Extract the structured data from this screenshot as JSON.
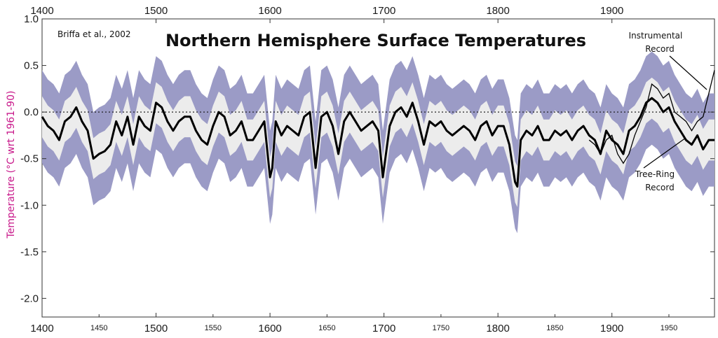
{
  "chart_data": {
    "type": "line",
    "title": "Northern Hemisphere Surface Temperatures",
    "source": "Briffa et al., 2002",
    "ylabel": "Temperature (°C wrt 1961-90)",
    "xlim": [
      1400,
      1990
    ],
    "ylim": [
      -2.2,
      1.0
    ],
    "x_major_ticks": [
      "1400",
      "1500",
      "1600",
      "1700",
      "1800",
      "1900"
    ],
    "x_minor_ticks": [
      "1450",
      "1550",
      "1650",
      "1750",
      "1850",
      "1950"
    ],
    "x_major_values": [
      1400,
      1500,
      1600,
      1700,
      1800,
      1900
    ],
    "x_minor_values": [
      1450,
      1550,
      1650,
      1750,
      1850,
      1950
    ],
    "y_ticks": [
      "1.0",
      "0.5",
      "0.0",
      "-0.5",
      "-1.0",
      "-1.5",
      "-2.0"
    ],
    "y_values": [
      1.0,
      0.5,
      0.0,
      -0.5,
      -1.0,
      -1.5,
      -2.0
    ],
    "zero_line": "dotted",
    "annotations": {
      "instrumental_line1": "Instrumental",
      "instrumental_line2": "Record",
      "treering_line1": "Tree-Ring",
      "treering_line2": "Record"
    },
    "colors": {
      "outer_band": "#9b9bc6",
      "inner_band": "#ececec",
      "tree_ring": "#000000",
      "instrumental": "#000000",
      "ylabel": "#c8188a"
    },
    "series": [
      {
        "name": "Tree-Ring Record",
        "x": [
          1400,
          1405,
          1410,
          1415,
          1420,
          1425,
          1430,
          1435,
          1440,
          1445,
          1450,
          1455,
          1460,
          1465,
          1470,
          1475,
          1480,
          1485,
          1490,
          1495,
          1500,
          1505,
          1510,
          1515,
          1520,
          1525,
          1530,
          1535,
          1540,
          1545,
          1550,
          1555,
          1560,
          1565,
          1570,
          1575,
          1580,
          1585,
          1590,
          1595,
          1600,
          1602,
          1605,
          1610,
          1615,
          1620,
          1625,
          1630,
          1635,
          1640,
          1645,
          1650,
          1655,
          1660,
          1665,
          1670,
          1675,
          1680,
          1685,
          1690,
          1695,
          1699,
          1705,
          1710,
          1715,
          1720,
          1725,
          1730,
          1735,
          1740,
          1745,
          1750,
          1755,
          1760,
          1765,
          1770,
          1775,
          1780,
          1785,
          1790,
          1795,
          1800,
          1805,
          1810,
          1815,
          1817,
          1820,
          1825,
          1830,
          1835,
          1840,
          1845,
          1850,
          1855,
          1860,
          1865,
          1870,
          1875,
          1880,
          1885,
          1890,
          1895,
          1900,
          1905,
          1910,
          1915,
          1920,
          1925,
          1930,
          1935,
          1940,
          1945,
          1950,
          1955,
          1960,
          1965,
          1970,
          1975,
          1980,
          1985,
          1990
        ],
        "values": [
          -0.05,
          -0.15,
          -0.2,
          -0.3,
          -0.1,
          -0.05,
          0.05,
          -0.1,
          -0.2,
          -0.5,
          -0.45,
          -0.42,
          -0.35,
          -0.1,
          -0.25,
          -0.05,
          -0.35,
          -0.05,
          -0.15,
          -0.2,
          0.1,
          0.05,
          -0.1,
          -0.2,
          -0.1,
          -0.05,
          -0.05,
          -0.2,
          -0.3,
          -0.35,
          -0.15,
          0.0,
          -0.05,
          -0.25,
          -0.2,
          -0.1,
          -0.3,
          -0.3,
          -0.2,
          -0.1,
          -0.7,
          -0.6,
          -0.1,
          -0.25,
          -0.15,
          -0.2,
          -0.25,
          -0.05,
          0.0,
          -0.6,
          -0.05,
          0.0,
          -0.15,
          -0.45,
          -0.1,
          0.0,
          -0.1,
          -0.2,
          -0.15,
          -0.1,
          -0.2,
          -0.7,
          -0.15,
          0.0,
          0.05,
          -0.05,
          0.1,
          -0.1,
          -0.35,
          -0.1,
          -0.15,
          -0.1,
          -0.2,
          -0.25,
          -0.2,
          -0.15,
          -0.2,
          -0.3,
          -0.15,
          -0.1,
          -0.25,
          -0.15,
          -0.15,
          -0.35,
          -0.75,
          -0.8,
          -0.3,
          -0.2,
          -0.25,
          -0.15,
          -0.3,
          -0.3,
          -0.2,
          -0.25,
          -0.2,
          -0.3,
          -0.2,
          -0.15,
          -0.25,
          -0.3,
          -0.45,
          -0.2,
          -0.3,
          -0.35,
          -0.45,
          -0.2,
          -0.15,
          -0.05,
          0.1,
          0.15,
          0.1,
          0.0,
          0.05,
          -0.1,
          -0.2,
          -0.3,
          -0.35,
          -0.25,
          -0.4,
          -0.3,
          -0.3
        ]
      },
      {
        "name": "Instrumental Record",
        "x": [
          1880,
          1885,
          1890,
          1895,
          1900,
          1905,
          1910,
          1915,
          1920,
          1925,
          1930,
          1935,
          1940,
          1945,
          1950,
          1955,
          1960,
          1965,
          1970,
          1975,
          1980,
          1985,
          1990
        ],
        "values": [
          -0.3,
          -0.35,
          -0.45,
          -0.3,
          -0.25,
          -0.45,
          -0.55,
          -0.45,
          -0.25,
          -0.1,
          0.05,
          0.3,
          0.25,
          0.15,
          0.2,
          0.0,
          -0.05,
          -0.1,
          -0.2,
          -0.1,
          -0.05,
          0.2,
          0.45
        ]
      }
    ]
  }
}
